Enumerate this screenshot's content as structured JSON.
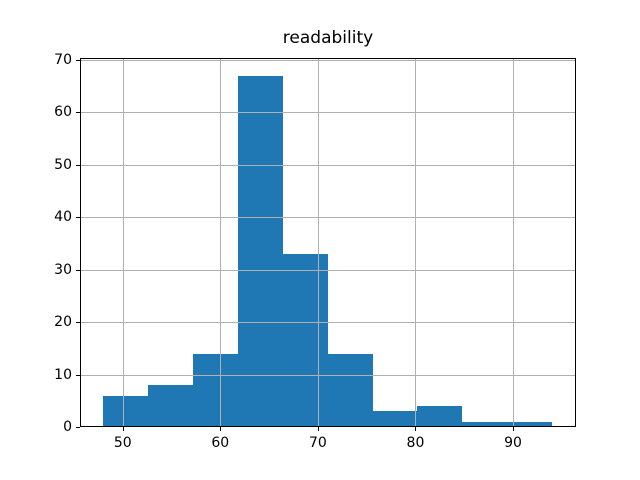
{
  "window": {
    "background": "#ffffff"
  },
  "chart_data": {
    "type": "bar",
    "subtype": "histogram",
    "title": "readability",
    "xlabel": "",
    "ylabel": "",
    "bin_edges": [
      48.0,
      52.6,
      57.2,
      61.8,
      66.4,
      71.0,
      75.6,
      80.2,
      84.8,
      89.4,
      94.0
    ],
    "counts": [
      6,
      8,
      14,
      67,
      33,
      14,
      3,
      4,
      1,
      1
    ],
    "x_ticks": [
      50,
      60,
      70,
      80,
      90
    ],
    "y_ticks": [
      0,
      10,
      20,
      30,
      40,
      50,
      60,
      70
    ],
    "xlim": [
      45.62,
      96.45
    ],
    "ylim": [
      0,
      70.35
    ],
    "grid": "on",
    "grid_above_bars": true,
    "legend_position": "none",
    "bar_color": "#1f77b4",
    "grid_color": "#b0b0b0",
    "spine_color": "#000000",
    "text_color": "#000000"
  }
}
